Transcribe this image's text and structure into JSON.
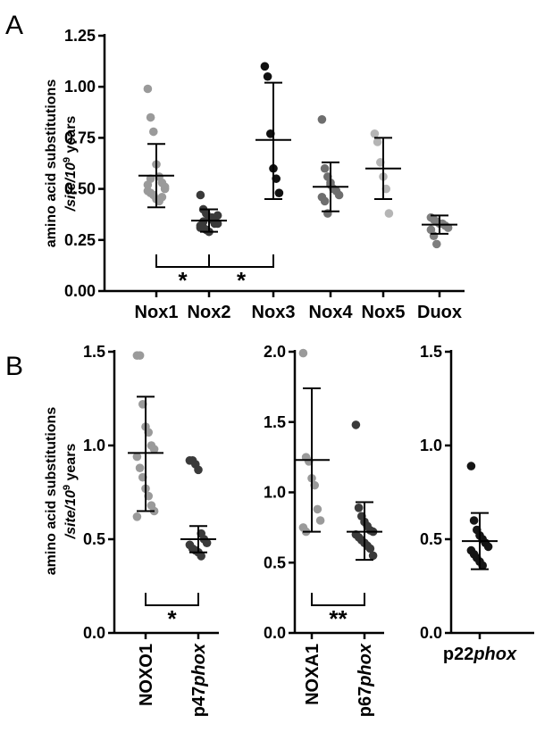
{
  "panels": {
    "a": {
      "letter": "A",
      "ylabel_line1": "amino acid substitutions",
      "ylabel_line2_pre": "/site/10",
      "ylabel_sup": "9",
      "ylabel_line2_post": " years",
      "yticks": [
        "0.00",
        "0.25",
        "0.50",
        "0.75",
        "1.00",
        "1.25"
      ],
      "sig_marks": [
        "*",
        "*"
      ]
    },
    "b": {
      "letter": "B",
      "ylabel_line1": "amino acid substitutions",
      "ylabel_line2_pre": "/site/10",
      "ylabel_sup": "9",
      "ylabel_line2_post": " years",
      "sub1": {
        "yticks": [
          "0.0",
          "0.5",
          "1.0",
          "1.5"
        ],
        "sig_mark": "*"
      },
      "sub2": {
        "yticks": [
          "0.0",
          "0.5",
          "1.0",
          "1.5",
          "2.0"
        ],
        "sig_mark": "**"
      },
      "sub3": {
        "yticks": [
          "0.0",
          "0.5",
          "1.0",
          "1.5"
        ]
      }
    }
  },
  "chart_data": [
    {
      "type": "scatter",
      "panel": "A",
      "ylabel": "amino acid substitutions /site/10^9 years",
      "ylim": [
        0,
        1.25
      ],
      "categories": [
        "Nox1",
        "Nox2",
        "Nox3",
        "Nox4",
        "Nox5",
        "Duox"
      ],
      "colors": [
        "#9a9a9a",
        "#3a3a3a",
        "#111111",
        "#6e6e6e",
        "#b5b5b5",
        "#7e7e7e"
      ],
      "points": [
        [
          0.99,
          0.85,
          0.78,
          0.62,
          0.56,
          0.53,
          0.5,
          0.49,
          0.48,
          0.47,
          0.45,
          0.44,
          0.46,
          0.51,
          0.52,
          0.55
        ],
        [
          0.47,
          0.4,
          0.38,
          0.36,
          0.35,
          0.34,
          0.33,
          0.32,
          0.31,
          0.3,
          0.29,
          0.36,
          0.33,
          0.37,
          0.31,
          0.34
        ],
        [
          1.1,
          1.05,
          0.77,
          0.6,
          0.55,
          0.48
        ],
        [
          0.84,
          0.6,
          0.56,
          0.52,
          0.5,
          0.49,
          0.47,
          0.46,
          0.44,
          0.38,
          0.53
        ],
        [
          0.77,
          0.73,
          0.63,
          0.56,
          0.5,
          0.38
        ],
        [
          0.36,
          0.35,
          0.34,
          0.33,
          0.33,
          0.32,
          0.31,
          0.3,
          0.27,
          0.23
        ]
      ],
      "mean": [
        0.565,
        0.345,
        0.74,
        0.51,
        0.6,
        0.325
      ],
      "sd_low": [
        0.41,
        0.29,
        0.45,
        0.39,
        0.45,
        0.28
      ],
      "sd_high": [
        0.72,
        0.4,
        1.02,
        0.63,
        0.75,
        0.37
      ],
      "significance": [
        {
          "from": "Nox1",
          "to": "Nox2",
          "label": "*"
        },
        {
          "from": "Nox2",
          "to": "Nox3",
          "label": "*"
        }
      ]
    },
    {
      "type": "scatter",
      "panel": "B-1",
      "ylabel": "amino acid substitutions /site/10^9 years",
      "ylim": [
        0,
        1.5
      ],
      "categories": [
        "NOXO1",
        "p47phox"
      ],
      "category_parts": [
        [
          "NOXO1",
          ""
        ],
        [
          "p47",
          "phox"
        ]
      ],
      "colors": [
        "#9a9a9a",
        "#3a3a3a"
      ],
      "points": [
        [
          1.48,
          1.48,
          1.22,
          1.1,
          1.07,
          1.0,
          0.98,
          0.94,
          0.88,
          0.83,
          0.77,
          0.73,
          0.68,
          0.65,
          0.62
        ],
        [
          0.92,
          0.92,
          0.9,
          0.87,
          0.53,
          0.5,
          0.48,
          0.47,
          0.45,
          0.44,
          0.43,
          0.41
        ]
      ],
      "mean": [
        0.96,
        0.5
      ],
      "sd_low": [
        0.65,
        0.43
      ],
      "sd_high": [
        1.26,
        0.57
      ],
      "significance": [
        {
          "from": "NOXO1",
          "to": "p47phox",
          "label": "*"
        }
      ]
    },
    {
      "type": "scatter",
      "panel": "B-2",
      "ylim": [
        0,
        2.0
      ],
      "categories": [
        "NOXA1",
        "p67phox"
      ],
      "category_parts": [
        [
          "NOXA1",
          ""
        ],
        [
          "p67",
          "phox"
        ]
      ],
      "colors": [
        "#9a9a9a",
        "#3a3a3a"
      ],
      "points": [
        [
          1.99,
          1.25,
          1.22,
          1.1,
          1.05,
          0.88,
          0.8,
          0.75,
          0.72
        ],
        [
          1.48,
          0.89,
          0.83,
          0.79,
          0.76,
          0.73,
          0.72,
          0.7,
          0.68,
          0.66,
          0.64,
          0.62,
          0.6,
          0.55
        ]
      ],
      "mean": [
        1.23,
        0.72
      ],
      "sd_low": [
        0.72,
        0.52
      ],
      "sd_high": [
        1.74,
        0.93
      ],
      "significance": [
        {
          "from": "NOXA1",
          "to": "p67phox",
          "label": "**"
        }
      ]
    },
    {
      "type": "scatter",
      "panel": "B-3",
      "ylim": [
        0,
        1.5
      ],
      "categories": [
        "p22phox"
      ],
      "category_parts": [
        [
          "p22",
          "phox"
        ]
      ],
      "colors": [
        "#151515"
      ],
      "points": [
        [
          0.89,
          0.6,
          0.55,
          0.52,
          0.5,
          0.48,
          0.46,
          0.44,
          0.42,
          0.4,
          0.38,
          0.36
        ]
      ],
      "mean": [
        0.49
      ],
      "sd_low": [
        0.34
      ],
      "sd_high": [
        0.64
      ]
    }
  ]
}
